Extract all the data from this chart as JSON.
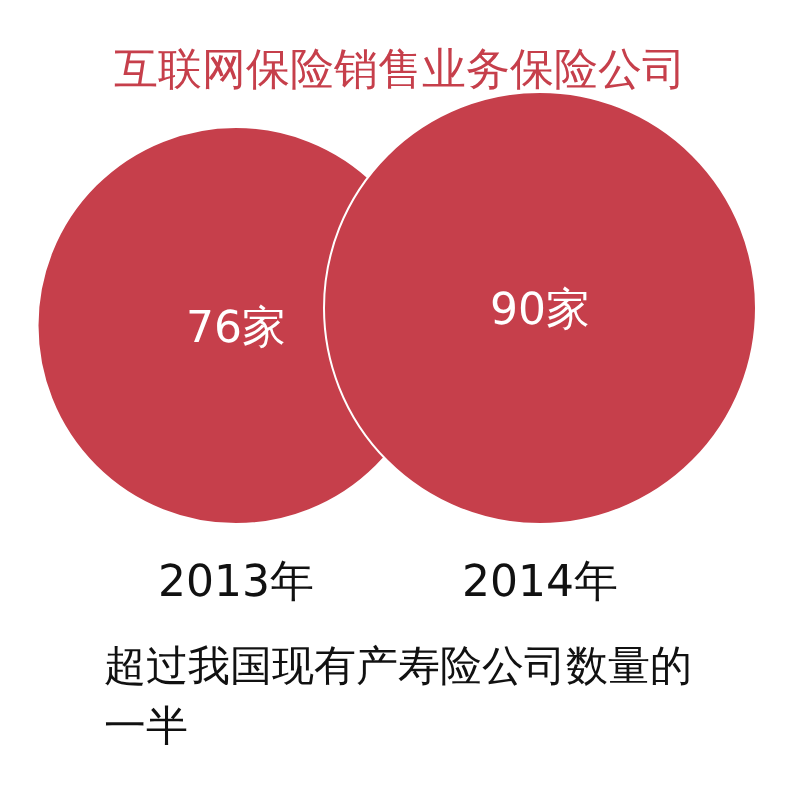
{
  "chart_data": {
    "type": "other",
    "title": "互联网保险销售业务保险公司",
    "categories": [
      "2013年",
      "2014年"
    ],
    "values": [
      76,
      90
    ],
    "value_labels": [
      "76家",
      "90家"
    ],
    "color": "#c63f4b",
    "annotations": [
      "超过我国现有产寿险公司数量的一半"
    ]
  }
}
